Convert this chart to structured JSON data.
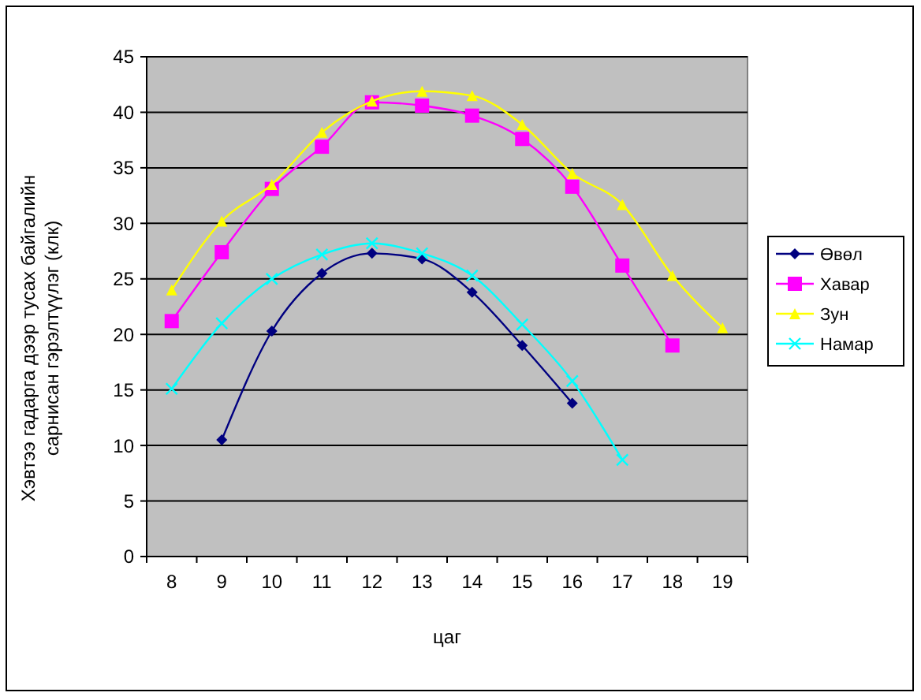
{
  "chart_data": {
    "type": "line",
    "xlabel": "цаг",
    "ylabel": "Хэвтээ гадарга дээр тусах байгалийн сарнисан гэрэлтүүлэг (клк)",
    "categories": [
      "8",
      "9",
      "10",
      "11",
      "12",
      "13",
      "14",
      "15",
      "16",
      "17",
      "18",
      "19"
    ],
    "series": [
      {
        "name": "Өвөл",
        "color": "#000080",
        "marker": "diamond",
        "values": [
          null,
          10.5,
          20.3,
          25.5,
          27.3,
          26.8,
          23.8,
          19.0,
          13.8,
          null,
          null,
          null
        ]
      },
      {
        "name": "Хавар",
        "color": "#ff00ff",
        "marker": "square",
        "values": [
          21.2,
          27.4,
          33.1,
          36.9,
          40.9,
          40.6,
          39.7,
          37.6,
          33.3,
          26.2,
          19.0,
          null
        ]
      },
      {
        "name": "Зун",
        "color": "#ffff00",
        "marker": "triangle",
        "values": [
          24.0,
          30.2,
          33.5,
          38.2,
          41.0,
          41.9,
          41.5,
          38.9,
          34.5,
          31.7,
          25.3,
          20.6
        ]
      },
      {
        "name": "Намар",
        "color": "#00ffff",
        "marker": "cross",
        "values": [
          15.1,
          21.0,
          25.0,
          27.2,
          28.2,
          27.3,
          25.3,
          20.9,
          15.8,
          8.7,
          null,
          null
        ]
      }
    ],
    "ylim": [
      0,
      45
    ],
    "yticks": [
      0,
      5,
      10,
      15,
      20,
      25,
      30,
      35,
      40,
      45
    ],
    "grid": "y",
    "legend": "right"
  }
}
